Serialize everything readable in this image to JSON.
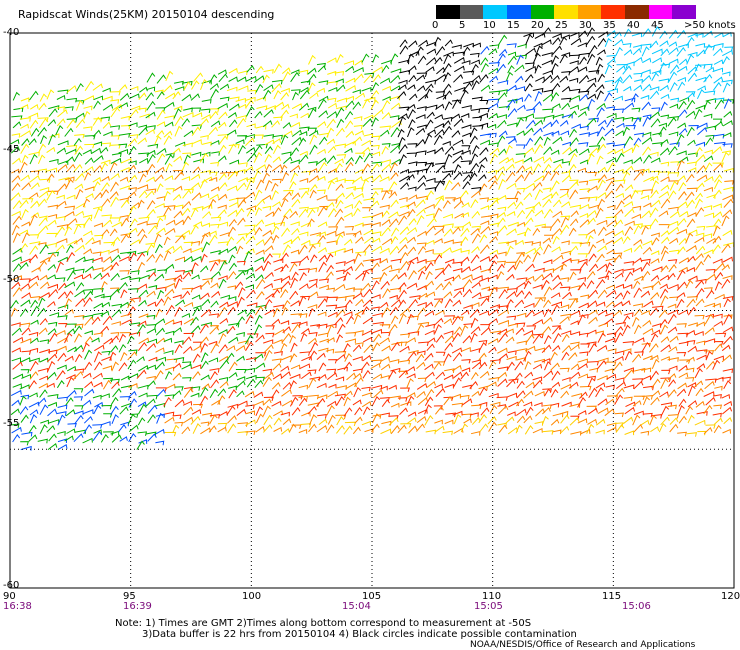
{
  "title": "Rapidscat Winds(25KM) 20150104 descending",
  "legend": {
    "labels": [
      "0",
      "5",
      "10",
      "15",
      "20",
      "25",
      "30",
      "35",
      "40",
      "45",
      ">50 knots"
    ],
    "colors": [
      "#000000",
      "#5a5a5a",
      "#00c8ff",
      "#0060ff",
      "#00b000",
      "#ffe000",
      "#ffa000",
      "#ff3000",
      "#8b2a00",
      "#ff00ff",
      "#8a00d0"
    ]
  },
  "axes": {
    "lat_labels": [
      "-40",
      "-45",
      "-50",
      "-55",
      "-60"
    ],
    "lon_labels": [
      "90",
      "95",
      "100",
      "105",
      "110",
      "115",
      "120"
    ],
    "time_labels": [
      "16:38",
      "16:39",
      "15:04",
      "15:05",
      "15:06"
    ]
  },
  "notes": {
    "line1": "Note: 1) Times are GMT 2)Times along bottom correspond to measurement at -50S",
    "line2": "3)Data buffer is 22 hrs from 20150104 4) Black circles indicate possible contamination",
    "credit": "NOAA/NESDIS/Office of Research and Applications"
  },
  "map": {
    "lat_range": [
      -60,
      -40
    ],
    "lon_range": [
      90,
      120
    ],
    "grid": "dotted",
    "swath_colors": [
      "#ff3000",
      "#ff8800",
      "#ffd000",
      "#ffee00",
      "#00b000",
      "#0050ff",
      "#000000",
      "#00c8ff"
    ]
  }
}
